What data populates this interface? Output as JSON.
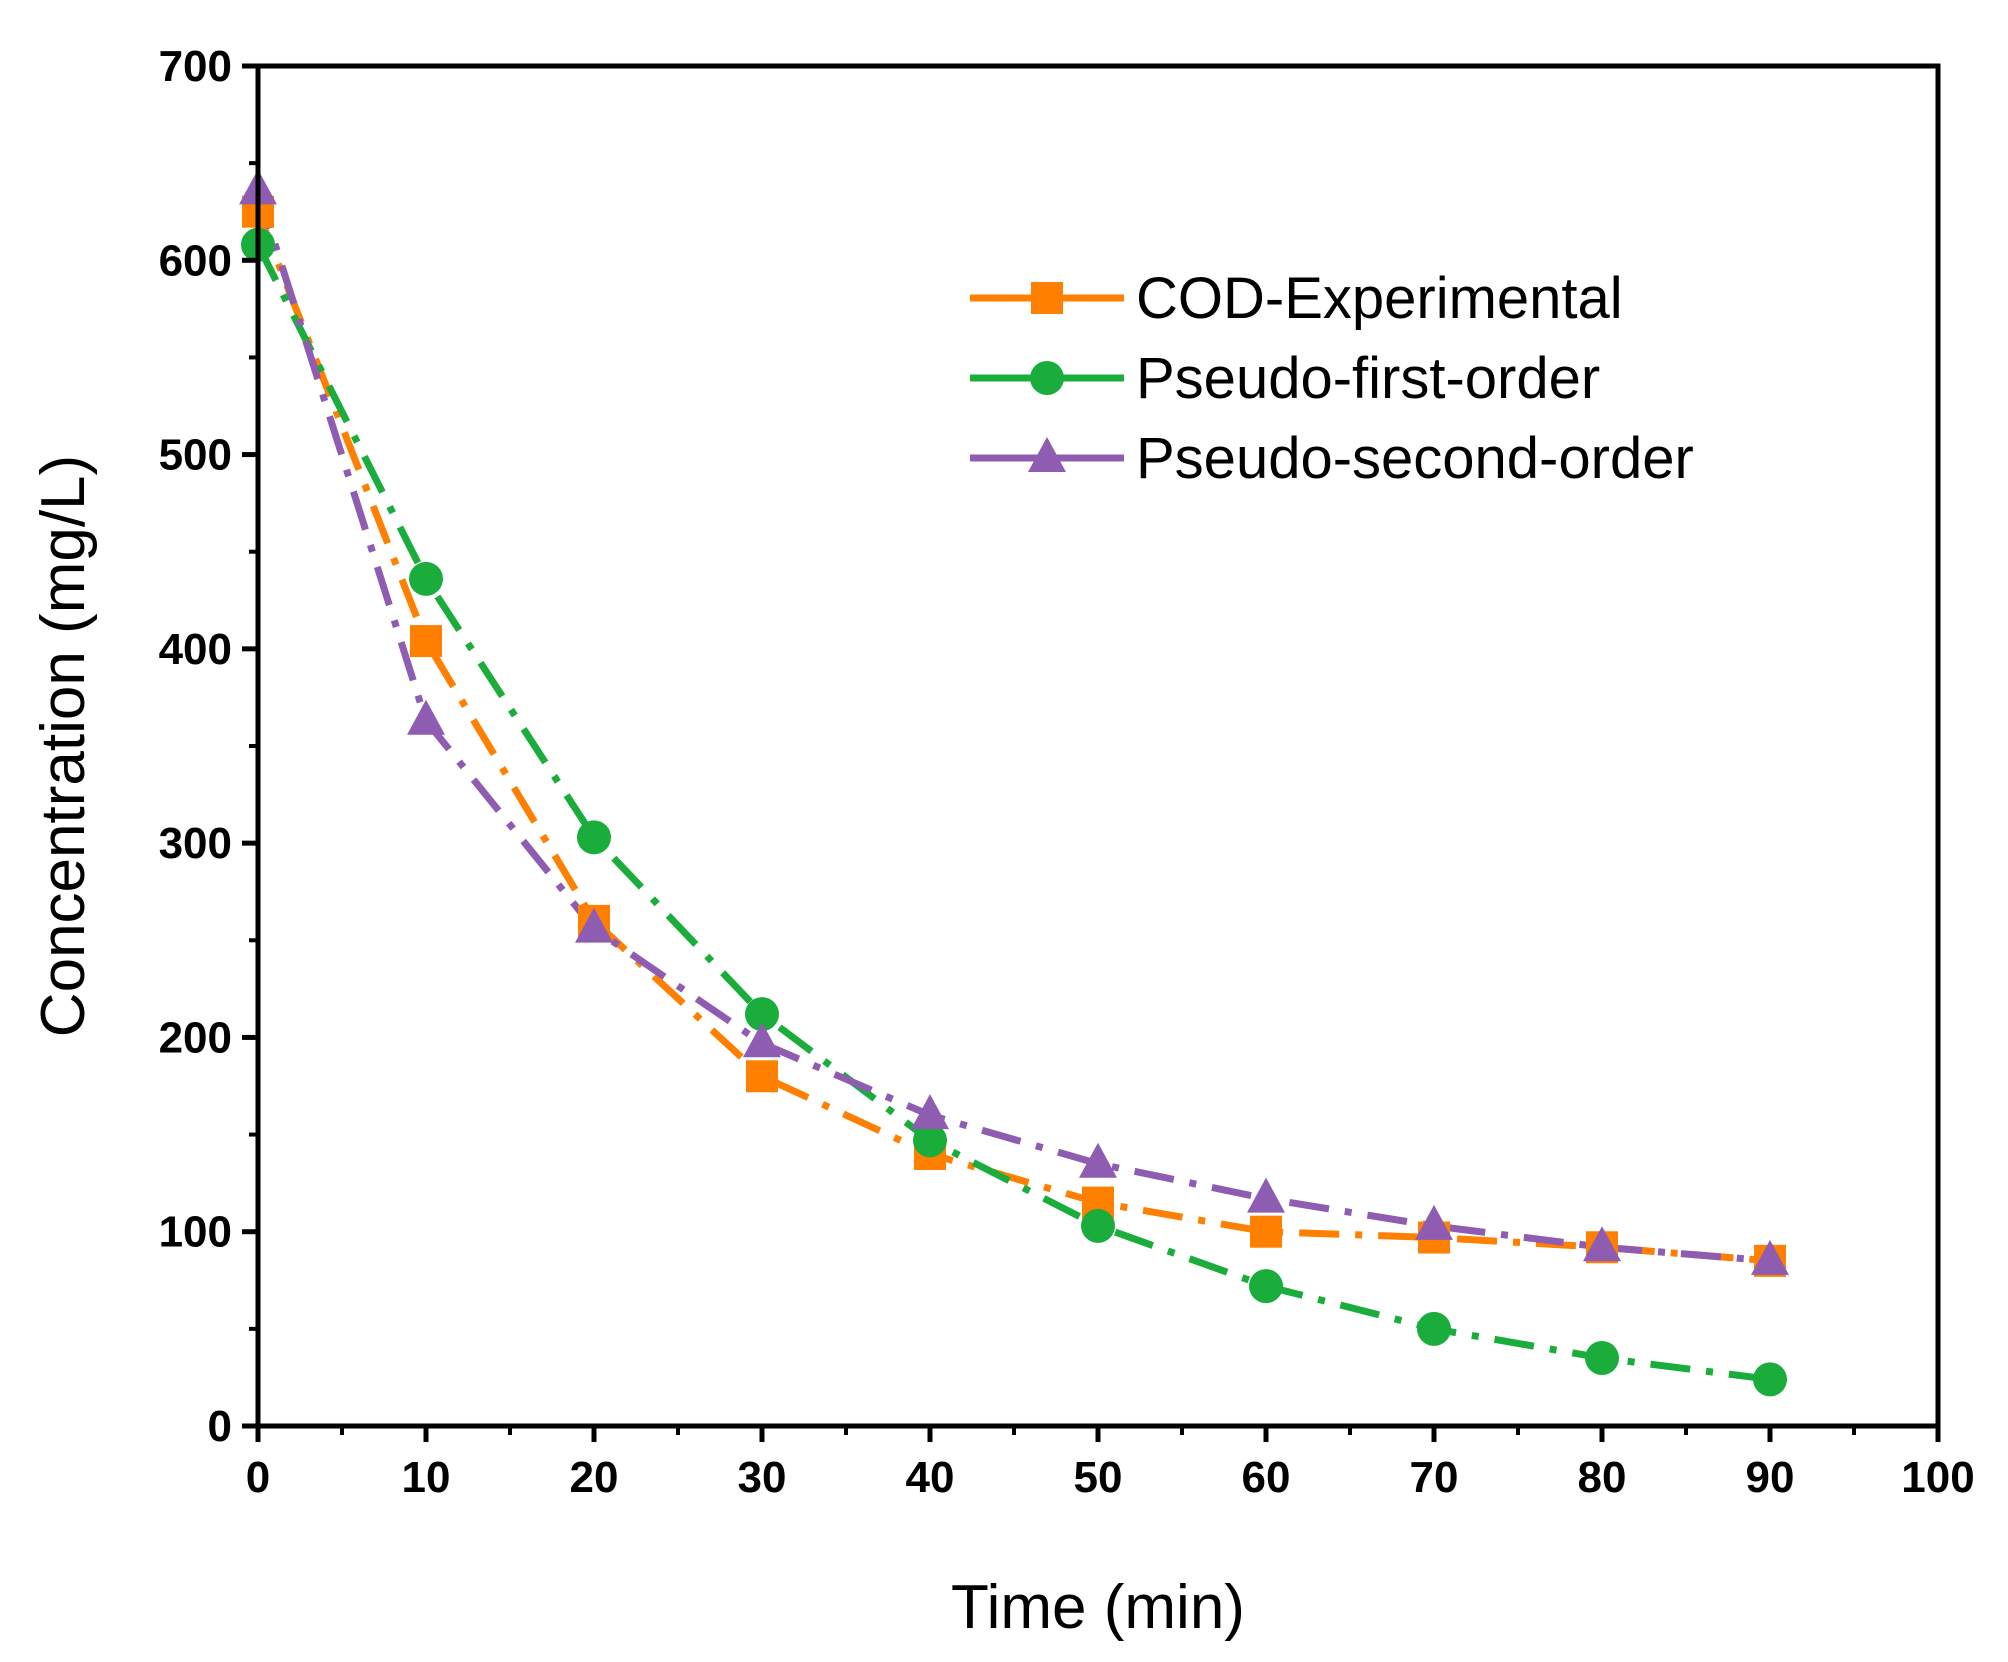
{
  "chart_data": {
    "type": "line",
    "title": "",
    "xlabel": "Time (min)",
    "ylabel": "Concentration (mg/L)",
    "xlim": [
      0,
      100
    ],
    "ylim": [
      0,
      700
    ],
    "xticks": [
      0,
      10,
      20,
      30,
      40,
      50,
      60,
      70,
      80,
      90,
      100
    ],
    "yticks": [
      0,
      100,
      200,
      300,
      400,
      500,
      600,
      700
    ],
    "x": [
      0,
      10,
      20,
      30,
      40,
      50,
      60,
      70,
      80,
      90
    ],
    "grid": false,
    "legend_position": "top-right",
    "series": [
      {
        "name": "COD-Experimental",
        "marker": "square",
        "color": "#ff7f00",
        "line_style": "dash-dot",
        "values": [
          625,
          404,
          260,
          180,
          140,
          115,
          100,
          97,
          92,
          85
        ]
      },
      {
        "name": "Pseudo-first-order",
        "marker": "circle",
        "color": "#1aad3c",
        "line_style": "dash-dot",
        "values": [
          608,
          436,
          303,
          212,
          147,
          103,
          72,
          50,
          35,
          24
        ]
      },
      {
        "name": "Pseudo-second-order",
        "marker": "triangle",
        "color": "#8e5cb0",
        "line_style": "dash-dot",
        "values": [
          636,
          363,
          256,
          197,
          160,
          135,
          117,
          103,
          92,
          85
        ]
      }
    ]
  }
}
